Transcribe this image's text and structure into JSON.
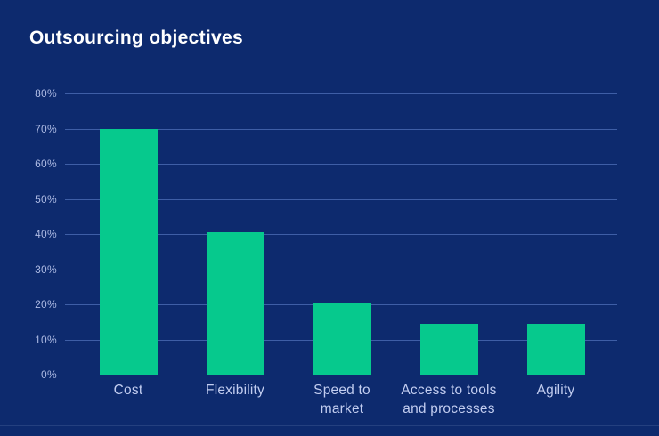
{
  "title": "Outsourcing objectives",
  "colors": {
    "background": "#0d2a6e",
    "bar": "#06c98d",
    "gridline": "#3e5ea6",
    "title_text": "#ffffff",
    "y_label_text": "#aebbe4",
    "x_label_text": "#c2cdf0",
    "bottom_rule": "#24407f"
  },
  "chart_data": {
    "type": "bar",
    "title": "Outsourcing objectives",
    "categories": [
      "Cost",
      "Flexibility",
      "Speed to market",
      "Access to tools and processes",
      "Agility"
    ],
    "category_display": [
      "Cost",
      "Flexibility",
      "Speed to\nmarket",
      "Access to tools\nand processes",
      "Agility"
    ],
    "values": [
      70,
      40.5,
      20.5,
      14.5,
      14.5
    ],
    "value_unit": "%",
    "xlabel": "",
    "ylabel": "",
    "ylim": [
      0,
      80
    ],
    "ytick_step": 10,
    "ytick_labels": [
      "0%",
      "10%",
      "20%",
      "30%",
      "40%",
      "50%",
      "60%",
      "70%",
      "80%"
    ],
    "grid": true,
    "legend": false
  }
}
